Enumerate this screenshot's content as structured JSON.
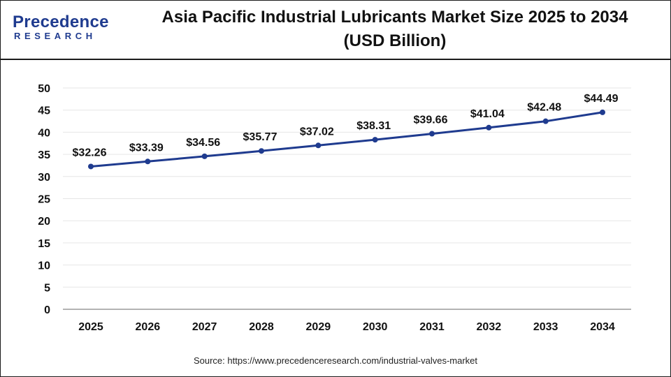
{
  "brand": {
    "logo_top": "Precedence",
    "logo_bottom": "RESEARCH"
  },
  "title_line1": "Asia Pacific Industrial Lubricants Market  Size 2025 to 2034",
  "title_line2": "(USD Billion)",
  "source": "Source: https://www.precedenceresearch.com/industrial-valves-market",
  "colors": {
    "line": "#1f3b8f",
    "grid": "#e6e6e6",
    "axis": "#9a9a9a",
    "text": "#111111"
  },
  "chart_data": {
    "type": "line",
    "title": "Asia Pacific Industrial Lubricants Market  Size 2025 to 2034 (USD Billion)",
    "xlabel": "",
    "ylabel": "",
    "categories": [
      "2025",
      "2026",
      "2027",
      "2028",
      "2029",
      "2030",
      "2031",
      "2032",
      "2033",
      "2034"
    ],
    "series": [
      {
        "values": [
          32.26,
          33.39,
          34.56,
          35.77,
          37.02,
          38.31,
          39.66,
          41.04,
          42.48,
          44.49
        ],
        "labels": [
          "$32.26",
          "$33.39",
          "$34.56",
          "$35.77",
          "$37.02",
          "$38.31",
          "$39.66",
          "$41.04",
          "$42.48",
          "$44.49"
        ]
      }
    ],
    "ylim": [
      0,
      50
    ],
    "yticks": [
      0,
      5,
      10,
      15,
      20,
      25,
      30,
      35,
      40,
      45,
      50
    ],
    "grid": true,
    "legend": "none"
  }
}
